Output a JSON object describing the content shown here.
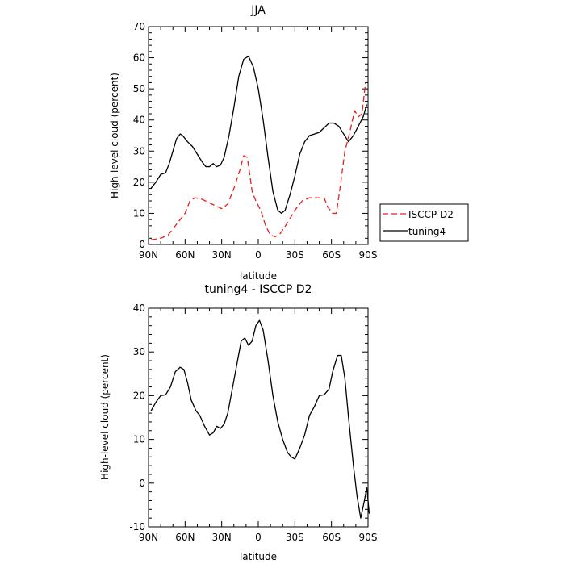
{
  "chart_data": [
    {
      "type": "line",
      "title": "JJA",
      "xlabel": "latitude",
      "ylabel": "High-level cloud (percent)",
      "xlim": [
        90,
        -90
      ],
      "ylim": [
        0,
        70
      ],
      "xticks": [
        90,
        60,
        30,
        0,
        -30,
        -60,
        -90
      ],
      "xtick_labels": [
        "90N",
        "60N",
        "30N",
        "0",
        "30S",
        "60S",
        "90S"
      ],
      "yticks": [
        0,
        10,
        20,
        30,
        40,
        50,
        60,
        70
      ],
      "ytick_labels": [
        "0",
        "10",
        "20",
        "30",
        "40",
        "50",
        "60",
        "70"
      ],
      "legend": {
        "placement": "right",
        "entries": [
          "ISCCP D2",
          "tuning4"
        ]
      },
      "series": [
        {
          "name": "ISCCP D2",
          "color": "#e8201c",
          "dash": "dashed",
          "points": [
            [
              88,
              1.5
            ],
            [
              80,
              2
            ],
            [
              74,
              3
            ],
            [
              68,
              6
            ],
            [
              60,
              10
            ],
            [
              56,
              14
            ],
            [
              52,
              15
            ],
            [
              46,
              14.5
            ],
            [
              38,
              13
            ],
            [
              30,
              11.5
            ],
            [
              25,
              13
            ],
            [
              20,
              18
            ],
            [
              15,
              24
            ],
            [
              12,
              28.5
            ],
            [
              9,
              28
            ],
            [
              5,
              17
            ],
            [
              2,
              14
            ],
            [
              -2,
              11
            ],
            [
              -6,
              6
            ],
            [
              -10,
              3
            ],
            [
              -14,
              2.5
            ],
            [
              -18,
              3.5
            ],
            [
              -24,
              7
            ],
            [
              -30,
              11
            ],
            [
              -36,
              14
            ],
            [
              -42,
              15
            ],
            [
              -48,
              15
            ],
            [
              -54,
              15
            ],
            [
              -57,
              12
            ],
            [
              -61,
              10
            ],
            [
              -64,
              10
            ],
            [
              -67,
              18
            ],
            [
              -71,
              30
            ],
            [
              -75,
              36
            ],
            [
              -79,
              43
            ],
            [
              -82,
              41
            ],
            [
              -85,
              42
            ],
            [
              -88,
              52
            ]
          ]
        },
        {
          "name": "tuning4",
          "color": "#000000",
          "dash": "solid",
          "points": [
            [
              88,
              18
            ],
            [
              84,
              20
            ],
            [
              80,
              22.5
            ],
            [
              76,
              23
            ],
            [
              73,
              26
            ],
            [
              70,
              30
            ],
            [
              67,
              34
            ],
            [
              64,
              35.5
            ],
            [
              62,
              35
            ],
            [
              58,
              33
            ],
            [
              54,
              31.5
            ],
            [
              50,
              29
            ],
            [
              46,
              26.5
            ],
            [
              43,
              25
            ],
            [
              40,
              25
            ],
            [
              37,
              26
            ],
            [
              34,
              25
            ],
            [
              31,
              25.5
            ],
            [
              28,
              28
            ],
            [
              24,
              35
            ],
            [
              20,
              44
            ],
            [
              16,
              54
            ],
            [
              12,
              59.5
            ],
            [
              8,
              60.5
            ],
            [
              4,
              57
            ],
            [
              0,
              50
            ],
            [
              -4,
              40
            ],
            [
              -8,
              28
            ],
            [
              -12,
              17
            ],
            [
              -16,
              11
            ],
            [
              -19,
              10
            ],
            [
              -22,
              11
            ],
            [
              -26,
              16
            ],
            [
              -30,
              22
            ],
            [
              -34,
              29
            ],
            [
              -38,
              33
            ],
            [
              -42,
              35
            ],
            [
              -46,
              35.5
            ],
            [
              -50,
              36
            ],
            [
              -54,
              37.5
            ],
            [
              -58,
              39
            ],
            [
              -62,
              39
            ],
            [
              -66,
              38
            ],
            [
              -70,
              35.5
            ],
            [
              -74,
              33
            ],
            [
              -78,
              35
            ],
            [
              -82,
              38
            ],
            [
              -86,
              41
            ],
            [
              -89,
              45
            ]
          ]
        }
      ]
    },
    {
      "type": "line",
      "title": "tuning4 - ISCCP D2",
      "xlabel": "latitude",
      "ylabel": "High-level cloud (percent)",
      "xlim": [
        90,
        -90
      ],
      "ylim": [
        -10,
        40
      ],
      "xticks": [
        90,
        60,
        30,
        0,
        -30,
        -60,
        -90
      ],
      "xtick_labels": [
        "90N",
        "60N",
        "30N",
        "0",
        "30S",
        "60S",
        "90S"
      ],
      "yticks": [
        -10,
        0,
        10,
        20,
        30,
        40
      ],
      "ytick_labels": [
        "-10",
        "0",
        "10",
        "20",
        "30",
        "40"
      ],
      "series": [
        {
          "color": "#000000",
          "dash": "solid",
          "points": [
            [
              88,
              16.5
            ],
            [
              84,
              18.5
            ],
            [
              80,
              20
            ],
            [
              76,
              20.2
            ],
            [
              72,
              22
            ],
            [
              68,
              25.5
            ],
            [
              64,
              26.5
            ],
            [
              61,
              26
            ],
            [
              58,
              23
            ],
            [
              55,
              19
            ],
            [
              51,
              16.5
            ],
            [
              48,
              15.5
            ],
            [
              44,
              13
            ],
            [
              40,
              11
            ],
            [
              37,
              11.5
            ],
            [
              34,
              13
            ],
            [
              31,
              12.5
            ],
            [
              28,
              13.5
            ],
            [
              25,
              16
            ],
            [
              21,
              22
            ],
            [
              17,
              28
            ],
            [
              14,
              32.5
            ],
            [
              11,
              33.2
            ],
            [
              8,
              31.5
            ],
            [
              5,
              32.5
            ],
            [
              2,
              36
            ],
            [
              -1,
              37.2
            ],
            [
              -4,
              35
            ],
            [
              -8,
              28
            ],
            [
              -12,
              20
            ],
            [
              -16,
              14
            ],
            [
              -20,
              10
            ],
            [
              -24,
              7
            ],
            [
              -27,
              6
            ],
            [
              -30,
              5.5
            ],
            [
              -34,
              8
            ],
            [
              -38,
              11
            ],
            [
              -42,
              15.5
            ],
            [
              -46,
              17.5
            ],
            [
              -50,
              20
            ],
            [
              -54,
              20.2
            ],
            [
              -58,
              21.5
            ],
            [
              -61,
              25.5
            ],
            [
              -65,
              29.2
            ],
            [
              -68,
              29.2
            ],
            [
              -71,
              24
            ],
            [
              -74,
              15
            ],
            [
              -78,
              4
            ],
            [
              -81,
              -3
            ],
            [
              -84,
              -8
            ],
            [
              -87,
              -4
            ],
            [
              -89,
              -1
            ],
            [
              -91,
              -7
            ]
          ]
        }
      ]
    }
  ]
}
